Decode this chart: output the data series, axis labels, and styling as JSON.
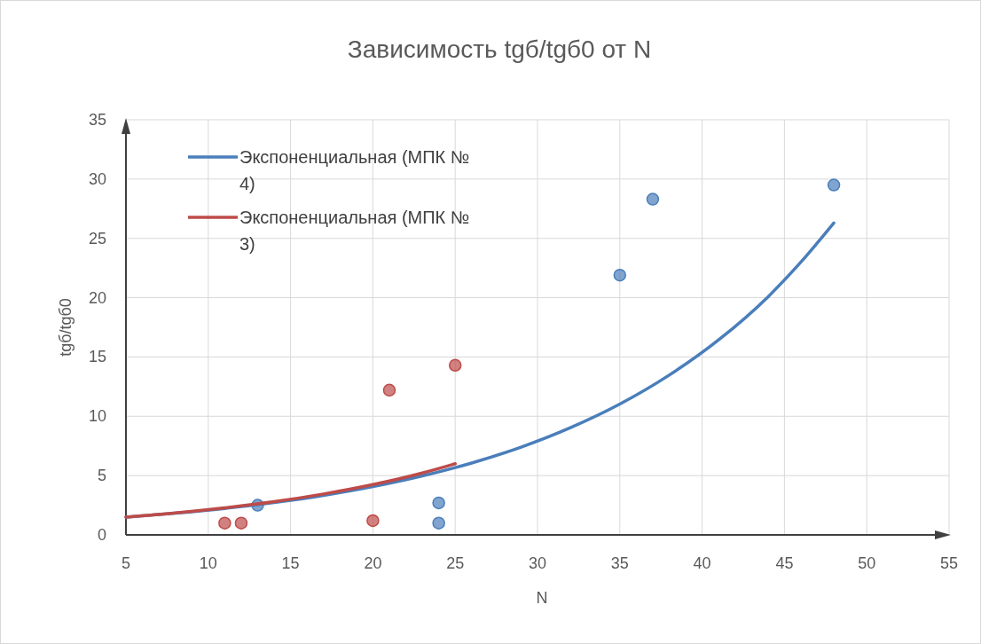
{
  "chart_data": {
    "type": "scatter",
    "title": "Зависимость tgб/tgб0 от N",
    "xlabel": "N",
    "ylabel": "tgб/tgб0",
    "xlim": [
      5,
      55
    ],
    "xticks": [
      5,
      10,
      15,
      20,
      25,
      30,
      35,
      40,
      45,
      50,
      55
    ],
    "ylim": [
      0,
      35
    ],
    "yticks": [
      0,
      5,
      10,
      15,
      20,
      25,
      30,
      35
    ],
    "grid": true,
    "legend": "top left",
    "series": [
      {
        "color": "#4a7ebb",
        "marker": "circle",
        "x": [
          13,
          24,
          24,
          35,
          37,
          48
        ],
        "values": [
          2.5,
          2.7,
          1.0,
          21.9,
          28.3,
          29.5
        ]
      },
      {
        "color": "#be4b48",
        "marker": "circle",
        "x": [
          11,
          12,
          20,
          21,
          25
        ],
        "values": [
          1.0,
          1.0,
          1.2,
          12.2,
          14.3
        ]
      },
      {
        "type": "line",
        "name": "Экспоненциальная (МПК № 4)",
        "color": "#4a7ebb",
        "marker": "none",
        "x": [
          5,
          8,
          11,
          14,
          17,
          20,
          23,
          26,
          29,
          32,
          35,
          38,
          41,
          44,
          46,
          48
        ],
        "values": [
          1.5,
          1.83,
          2.23,
          2.73,
          3.33,
          4.07,
          4.97,
          6.06,
          7.4,
          9.04,
          11.03,
          13.47,
          16.44,
          20.07,
          23.0,
          26.3
        ]
      },
      {
        "type": "line",
        "name": "Экспоненциальная (МПК № 3)",
        "color": "#be4b48",
        "marker": "none",
        "x": [
          5,
          8,
          11,
          14,
          17,
          20,
          23,
          25
        ],
        "values": [
          1.5,
          1.85,
          2.28,
          2.8,
          3.45,
          4.24,
          5.22,
          6.0
        ]
      }
    ]
  }
}
